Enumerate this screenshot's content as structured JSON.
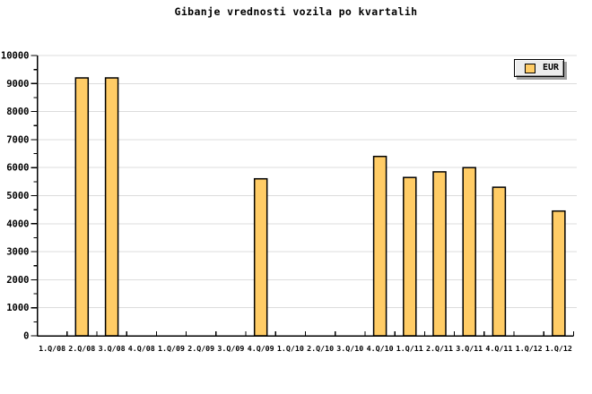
{
  "title": "Gibanje vrednosti vozila po kvartalih",
  "legend": {
    "label": "EUR"
  },
  "colors": {
    "background": "#FFFFFF",
    "bar_fill": "#FFCC66",
    "bar_border": "#000000",
    "grid": "#DCDCDC",
    "axis": "#000000",
    "text": "#000000",
    "legend_bg": "#ECECEC",
    "legend_shadow": "#A0A0A0"
  },
  "chart_data": {
    "type": "bar",
    "title": "Gibanje vrednosti vozila po kvartalih",
    "xlabel": "",
    "ylabel": "",
    "ylim": [
      0,
      10000
    ],
    "ytick_major": 1000,
    "ytick_minor": 500,
    "grid": "horizontal-major",
    "legend_position": "top-right",
    "categories": [
      "1.Q/08",
      "2.Q/08",
      "3.Q/08",
      "4.Q/08",
      "1.Q/09",
      "2.Q/09",
      "3.Q/09",
      "4.Q/09",
      "1.Q/10",
      "2.Q/10",
      "3.Q/10",
      "4.Q/10",
      "1.Q/11",
      "2.Q/11",
      "3.Q/11",
      "4.Q/11",
      "1.Q/12",
      "1.Q/12"
    ],
    "series": [
      {
        "name": "EUR",
        "values": [
          null,
          9200,
          9200,
          null,
          null,
          null,
          null,
          5600,
          null,
          null,
          null,
          6400,
          5650,
          5850,
          6000,
          5300,
          null,
          4450
        ]
      }
    ]
  }
}
